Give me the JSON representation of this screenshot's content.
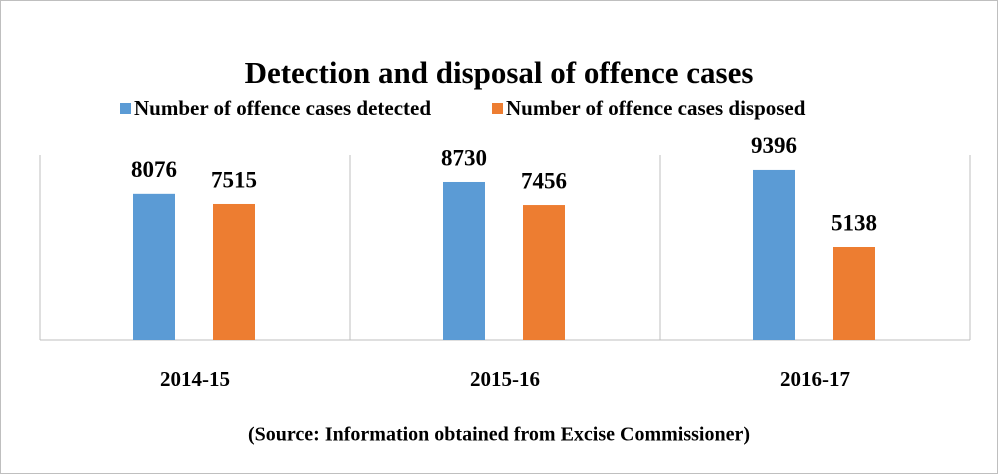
{
  "chart_data": {
    "type": "bar",
    "title": "Detection and disposal of offence cases",
    "categories": [
      "2014-15",
      "2015-16",
      "2016-17"
    ],
    "series": [
      {
        "name": "Number of offence cases detected",
        "color": "#5b9bd5",
        "values": [
          8076,
          8730,
          9396
        ]
      },
      {
        "name": "Number of offence cases disposed",
        "color": "#ed7d31",
        "values": [
          7515,
          7456,
          5138
        ]
      }
    ],
    "ylim": [
      0,
      10000
    ],
    "source": "(Source: Information obtained from Excise Commissioner)"
  }
}
